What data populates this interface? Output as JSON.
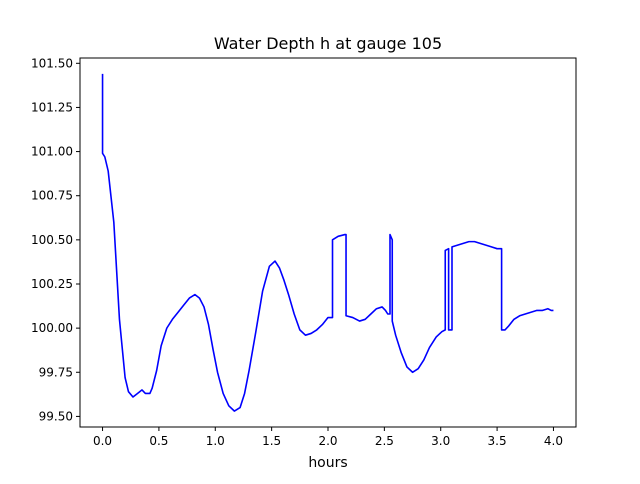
{
  "chart_data": {
    "type": "line",
    "title": "Water Depth h at gauge 105",
    "xlabel": "hours",
    "ylabel": "",
    "xlim": [
      -0.2,
      4.2
    ],
    "ylim": [
      99.44,
      101.53
    ],
    "grid": false,
    "legend": "none",
    "x_ticks": [
      0.0,
      0.5,
      1.0,
      1.5,
      2.0,
      2.5,
      3.0,
      3.5,
      4.0
    ],
    "x_tick_labels": [
      "0.0",
      "0.5",
      "1.0",
      "1.5",
      "2.0",
      "2.5",
      "3.0",
      "3.5",
      "4.0"
    ],
    "y_ticks": [
      99.5,
      99.75,
      100.0,
      100.25,
      100.5,
      100.75,
      101.0,
      101.25,
      101.5
    ],
    "y_tick_labels": [
      "99.50",
      "99.75",
      "100.00",
      "100.25",
      "100.50",
      "100.75",
      "101.00",
      "101.25",
      "101.50"
    ],
    "series": [
      {
        "color": "#0000ff",
        "x": [
          0.0,
          0.0,
          0.0,
          0.02,
          0.05,
          0.1,
          0.15,
          0.2,
          0.23,
          0.27,
          0.31,
          0.35,
          0.38,
          0.42,
          0.44,
          0.48,
          0.52,
          0.57,
          0.62,
          0.67,
          0.72,
          0.77,
          0.82,
          0.86,
          0.9,
          0.94,
          0.98,
          1.02,
          1.07,
          1.12,
          1.17,
          1.22,
          1.26,
          1.3,
          1.36,
          1.42,
          1.48,
          1.53,
          1.57,
          1.61,
          1.65,
          1.7,
          1.75,
          1.8,
          1.85,
          1.9,
          1.95,
          2.0,
          2.04,
          2.04,
          2.09,
          2.15,
          2.16,
          2.16,
          2.22,
          2.28,
          2.33,
          2.38,
          2.43,
          2.48,
          2.51,
          2.53,
          2.55,
          2.55,
          2.57,
          2.57,
          2.6,
          2.65,
          2.7,
          2.75,
          2.8,
          2.85,
          2.9,
          2.96,
          3.01,
          3.04,
          3.04,
          3.07,
          3.07,
          3.1,
          3.1,
          3.15,
          3.2,
          3.25,
          3.3,
          3.35,
          3.4,
          3.45,
          3.5,
          3.54,
          3.54,
          3.57,
          3.6,
          3.65,
          3.7,
          3.75,
          3.8,
          3.85,
          3.9,
          3.95,
          3.98,
          4.0
        ],
        "y": [
          101.44,
          101.44,
          100.99,
          100.97,
          100.89,
          100.6,
          100.05,
          99.72,
          99.64,
          99.61,
          99.63,
          99.65,
          99.63,
          99.63,
          99.66,
          99.76,
          99.9,
          100.0,
          100.05,
          100.09,
          100.13,
          100.17,
          100.19,
          100.17,
          100.12,
          100.02,
          99.88,
          99.75,
          99.63,
          99.56,
          99.53,
          99.55,
          99.63,
          99.76,
          99.98,
          100.21,
          100.35,
          100.38,
          100.34,
          100.27,
          100.19,
          100.08,
          99.99,
          99.96,
          99.97,
          99.99,
          100.02,
          100.06,
          100.06,
          100.5,
          100.52,
          100.53,
          100.53,
          100.07,
          100.06,
          100.04,
          100.05,
          100.08,
          100.11,
          100.12,
          100.1,
          100.08,
          100.08,
          100.53,
          100.5,
          100.04,
          99.96,
          99.86,
          99.78,
          99.75,
          99.77,
          99.82,
          99.89,
          99.95,
          99.98,
          99.99,
          100.44,
          100.45,
          99.99,
          99.99,
          100.46,
          100.47,
          100.48,
          100.49,
          100.49,
          100.48,
          100.47,
          100.46,
          100.45,
          100.45,
          99.99,
          99.99,
          100.01,
          100.05,
          100.07,
          100.08,
          100.09,
          100.1,
          100.1,
          100.11,
          100.1,
          100.1
        ]
      }
    ]
  }
}
